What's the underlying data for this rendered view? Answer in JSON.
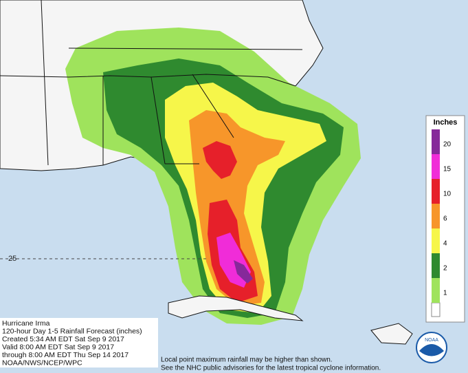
{
  "map": {
    "latitude_label": "25"
  },
  "legend": {
    "title": "Inches",
    "levels": [
      {
        "value": 1,
        "color": "#9fe35c"
      },
      {
        "value": 2,
        "color": "#2f8a2f"
      },
      {
        "value": 4,
        "color": "#f6f64a"
      },
      {
        "value": 6,
        "color": "#f7962a"
      },
      {
        "value": 10,
        "color": "#e6202a"
      },
      {
        "value": 15,
        "color": "#f02cd8"
      },
      {
        "value": 20,
        "color": "#86299a"
      }
    ]
  },
  "info": {
    "lines": [
      "Hurricane Irma",
      "120-hour Day 1-5 Rainfall Forecast (inches)",
      "Created 5:34 AM EDT Sat Sep 9 2017",
      "Valid 8:00 AM EDT Sat Sep 9 2017",
      "through 8:00 AM EDT Thu Sep 14 2017",
      "NOAA/NWS/NCEP/WPC"
    ]
  },
  "notes": [
    "Local point maximum rainfall may be higher than shown.",
    "See the NHC public advisories for the latest tropical cyclone information."
  ],
  "logo": "NOAA"
}
